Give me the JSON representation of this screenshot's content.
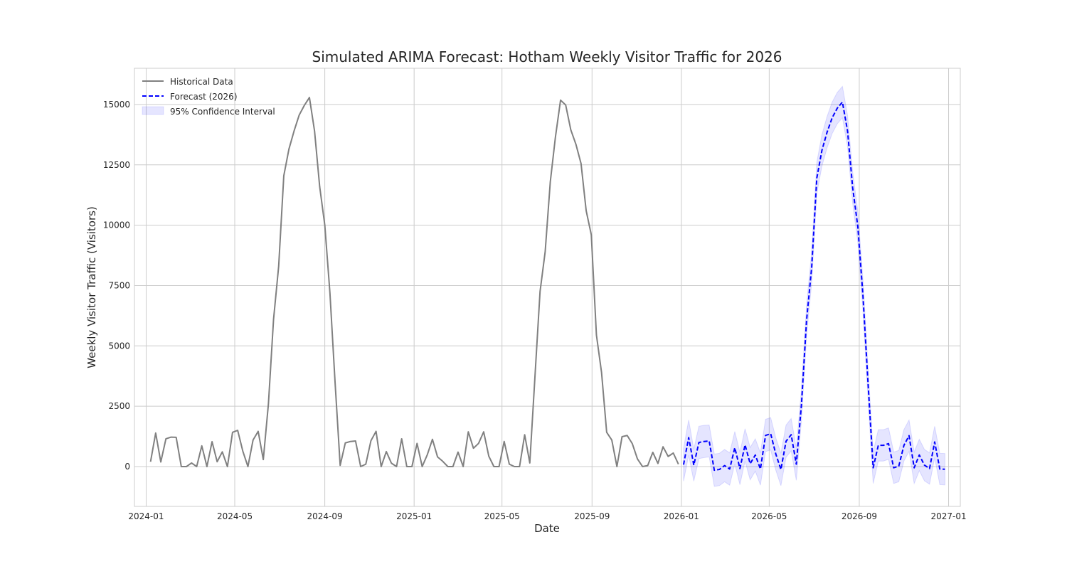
{
  "chart_data": {
    "type": "line",
    "title": "Simulated ARIMA Forecast: Hotham Weekly Visitor Traffic for 2026",
    "xlabel": "Date",
    "ylabel": "Weekly Visitor Traffic (Visitors)",
    "xlim": [
      "2023-12-16",
      "2027-01-17"
    ],
    "ylim": [
      -1650,
      16500
    ],
    "x_ticks": [
      "2024-01",
      "2024-05",
      "2024-09",
      "2025-01",
      "2025-05",
      "2025-09",
      "2026-01",
      "2026-05",
      "2026-09",
      "2027-01"
    ],
    "y_ticks": [
      0,
      2500,
      5000,
      7500,
      10000,
      12500,
      15000
    ],
    "grid": true,
    "legend_position": "top-left",
    "colors": {
      "historical": "#808080",
      "forecast": "#0000ff",
      "ci_fill": "#0000ff"
    },
    "series": [
      {
        "name": "Historical Data",
        "style": "solid",
        "start_date": "2024-01-07",
        "interval_days": 7,
        "values": [
          200,
          1390,
          190,
          1150,
          1220,
          1210,
          0,
          0,
          150,
          0,
          860,
          0,
          1030,
          200,
          610,
          0,
          1420,
          1500,
          640,
          0,
          1100,
          1460,
          290,
          2600,
          6100,
          8300,
          12050,
          13150,
          13900,
          14560,
          14960,
          15290,
          13900,
          11600,
          10000,
          7200,
          3500,
          50,
          980,
          1040,
          1060,
          0,
          100,
          1070,
          1460,
          0,
          620,
          140,
          0,
          1150,
          0,
          0,
          960,
          0,
          490,
          1130,
          400,
          220,
          0,
          0,
          600,
          0,
          1440,
          760,
          960,
          1440,
          430,
          0,
          0,
          1040,
          100,
          0,
          0,
          1320,
          150,
          3700,
          7250,
          8900,
          11800,
          13650,
          15180,
          14980,
          13950,
          13350,
          12550,
          10600,
          9600,
          5450,
          3900,
          1420,
          1100,
          0,
          1240,
          1290,
          950,
          320,
          0,
          40,
          590,
          130,
          820,
          420,
          560,
          100
        ]
      },
      {
        "name": "Forecast (2026)",
        "style": "dashed",
        "start_date": "2026-01-04",
        "interval_days": 7,
        "values": [
          80,
          1200,
          60,
          1000,
          1040,
          1060,
          -150,
          -120,
          40,
          -100,
          780,
          -80,
          900,
          120,
          480,
          -100,
          1290,
          1360,
          520,
          -120,
          1050,
          1320,
          100,
          2550,
          6050,
          8250,
          11950,
          13100,
          13850,
          14450,
          14850,
          15100,
          13900,
          11550,
          9950,
          7100,
          3450,
          -50,
          880,
          880,
          950,
          -50,
          20,
          880,
          1280,
          -50,
          480,
          60,
          -80,
          1020,
          -100,
          -110
        ]
      }
    ],
    "confidence_interval": {
      "name": "95% Confidence Interval",
      "lower": [
        -600,
        470,
        -600,
        330,
        370,
        400,
        -820,
        -790,
        -630,
        -770,
        110,
        -750,
        230,
        -550,
        -190,
        -770,
        620,
        690,
        -150,
        -790,
        380,
        650,
        -570,
        1900,
        5400,
        7600,
        11300,
        12450,
        13200,
        13800,
        14200,
        14450,
        13250,
        10900,
        9300,
        6450,
        2800,
        -700,
        230,
        230,
        300,
        -700,
        -630,
        230,
        630,
        -700,
        -170,
        -590,
        -730,
        370,
        -750,
        -760
      ],
      "upper": [
        760,
        1930,
        720,
        1670,
        1710,
        1720,
        520,
        550,
        710,
        570,
        1450,
        590,
        1570,
        790,
        1150,
        570,
        1960,
        2030,
        1190,
        550,
        1720,
        1990,
        770,
        3200,
        6700,
        8900,
        12600,
        13750,
        14500,
        15100,
        15500,
        15750,
        14550,
        12200,
        10600,
        7750,
        4100,
        600,
        1530,
        1530,
        1600,
        600,
        670,
        1530,
        1930,
        600,
        1130,
        710,
        570,
        1670,
        550,
        540
      ]
    }
  }
}
